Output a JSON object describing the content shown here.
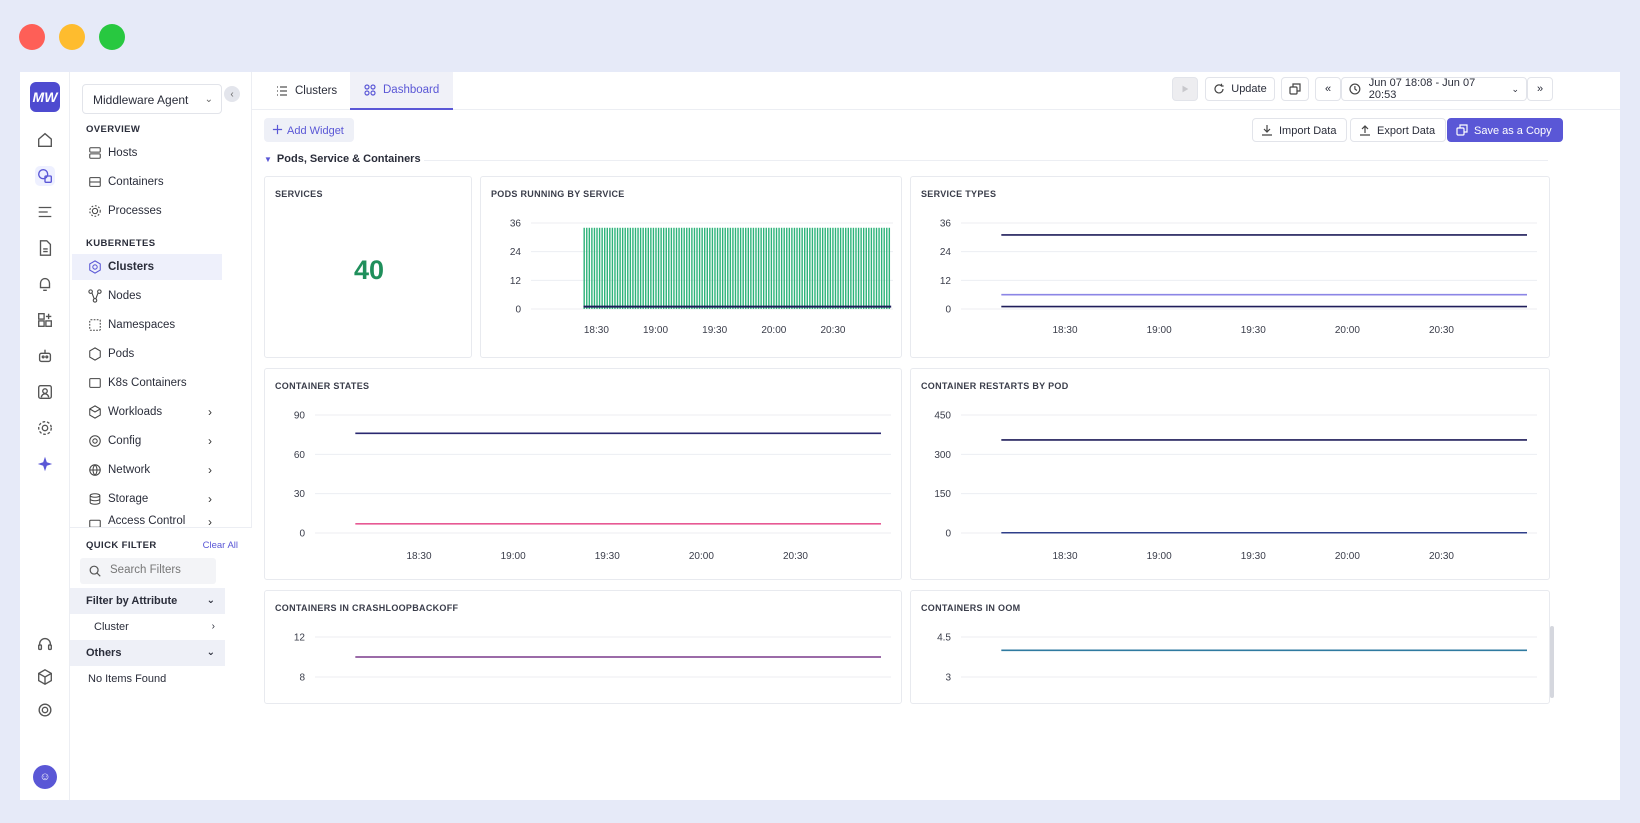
{
  "colors": {
    "accent": "#5a57d6",
    "big_number": "#1f8f5b",
    "green_bars": "#2db37a",
    "navy": "#1f1d5a",
    "lavender": "#8c86e6",
    "pink": "#e75a94",
    "purple": "#7a3a8c",
    "teal": "#2f7aa0"
  },
  "rail": {
    "logo": "MW",
    "icons": [
      "home-icon",
      "infrastructure-icon",
      "logs-icon",
      "reports-icon",
      "alerts-icon",
      "dashboards-add-icon",
      "bot-icon",
      "user-monitor-icon",
      "settings-gear-icon",
      "ai-sparkle-icon",
      "support-headset-icon",
      "package-icon",
      "settings-icon"
    ],
    "avatar": "☺"
  },
  "sidebar": {
    "agent_select": "Middleware Agent",
    "overview_title": "OVERVIEW",
    "overview": [
      {
        "label": "Hosts",
        "icon": "hosts-icon"
      },
      {
        "label": "Containers",
        "icon": "containers-icon"
      },
      {
        "label": "Processes",
        "icon": "processes-icon"
      }
    ],
    "kubernetes_title": "KUBERNETES",
    "kubernetes": [
      {
        "label": "Clusters",
        "icon": "clusters-icon",
        "active": true
      },
      {
        "label": "Nodes",
        "icon": "nodes-icon"
      },
      {
        "label": "Namespaces",
        "icon": "namespaces-icon"
      },
      {
        "label": "Pods",
        "icon": "pods-icon"
      },
      {
        "label": "K8s Containers",
        "icon": "k8s-containers-icon"
      },
      {
        "label": "Workloads",
        "icon": "workloads-icon",
        "arrow": true
      },
      {
        "label": "Config",
        "icon": "config-icon",
        "arrow": true
      },
      {
        "label": "Network",
        "icon": "network-icon",
        "arrow": true
      },
      {
        "label": "Storage",
        "icon": "storage-icon",
        "arrow": true
      },
      {
        "label": "Access Control",
        "icon": "access-control-icon",
        "arrow": true
      }
    ],
    "quick_filter": {
      "title": "QUICK FILTER",
      "clear": "Clear All",
      "search_placeholder": "Search Filters",
      "group1": "Filter by Attribute",
      "item1": "Cluster",
      "group2": "Others",
      "empty": "No Items Found"
    }
  },
  "tabs": [
    {
      "label": "Clusters"
    },
    {
      "label": "Dashboard"
    }
  ],
  "toolbar": {
    "update": "Update",
    "time_range": "Jun 07 18:08 - Jun 07 20:53"
  },
  "actions": {
    "add_widget": "Add Widget",
    "import": "Import Data",
    "export": "Export Data",
    "save_copy": "Save as a Copy"
  },
  "group_title": "Pods, Service & Containers",
  "widgets": {
    "services": {
      "title": "SERVICES",
      "value": "40"
    },
    "pods_running": {
      "title": "PODS RUNNING BY SERVICE"
    },
    "service_types": {
      "title": "SERVICE TYPES"
    },
    "container_states": {
      "title": "CONTAINER STATES"
    },
    "container_restarts": {
      "title": "CONTAINER RESTARTS BY POD"
    },
    "crashloop": {
      "title": "CONTAINERS IN CRASHLOOPBACKOFF"
    },
    "oom": {
      "title": "CONTAINERS IN OOM"
    }
  },
  "chart_data": [
    {
      "type": "bar",
      "title": "PODS RUNNING BY SERVICE",
      "y_ticks": [
        0,
        12,
        24,
        36
      ],
      "ylim": [
        0,
        36
      ],
      "x_ticks": [
        "18:30",
        "19:00",
        "19:30",
        "20:00",
        "20:30"
      ],
      "series": [
        {
          "values_constant": 34,
          "color": "#2db37a"
        },
        {
          "values_constant": 1,
          "color": "#1f1d5a"
        }
      ]
    },
    {
      "type": "line",
      "title": "SERVICE TYPES",
      "y_ticks": [
        0,
        12,
        24,
        36
      ],
      "ylim": [
        0,
        36
      ],
      "x_ticks": [
        "18:30",
        "19:00",
        "19:30",
        "20:00",
        "20:30"
      ],
      "series": [
        {
          "value": 31,
          "color": "#1f1d5a"
        },
        {
          "value": 6,
          "color": "#8c86e6"
        },
        {
          "value": 1,
          "color": "#1f1d5a"
        }
      ]
    },
    {
      "type": "line",
      "title": "CONTAINER STATES",
      "y_ticks": [
        0,
        30,
        60,
        90
      ],
      "ylim": [
        0,
        90
      ],
      "x_ticks": [
        "18:30",
        "19:00",
        "19:30",
        "20:00",
        "20:30"
      ],
      "series": [
        {
          "value": 76,
          "color": "#2a2870"
        },
        {
          "value": 7,
          "color": "#e75a94"
        }
      ]
    },
    {
      "type": "line",
      "title": "CONTAINER RESTARTS BY POD",
      "y_ticks": [
        0,
        150,
        300,
        450
      ],
      "ylim": [
        0,
        450
      ],
      "x_ticks": [
        "18:30",
        "19:00",
        "19:30",
        "20:00",
        "20:30"
      ],
      "series": [
        {
          "value": 355,
          "color": "#1f1d5a"
        },
        {
          "value": 1,
          "color": "#2f3f8a"
        }
      ]
    },
    {
      "type": "line",
      "title": "CONTAINERS IN CRASHLOOPBACKOFF",
      "y_ticks": [
        8,
        12
      ],
      "x_ticks": [],
      "series": [
        {
          "value": 10,
          "color": "#7a3a8c"
        }
      ]
    },
    {
      "type": "line",
      "title": "CONTAINERS IN OOM",
      "y_ticks": [
        3,
        4.5
      ],
      "x_ticks": [],
      "series": [
        {
          "value": 4,
          "color": "#2f7aa0"
        }
      ]
    }
  ]
}
